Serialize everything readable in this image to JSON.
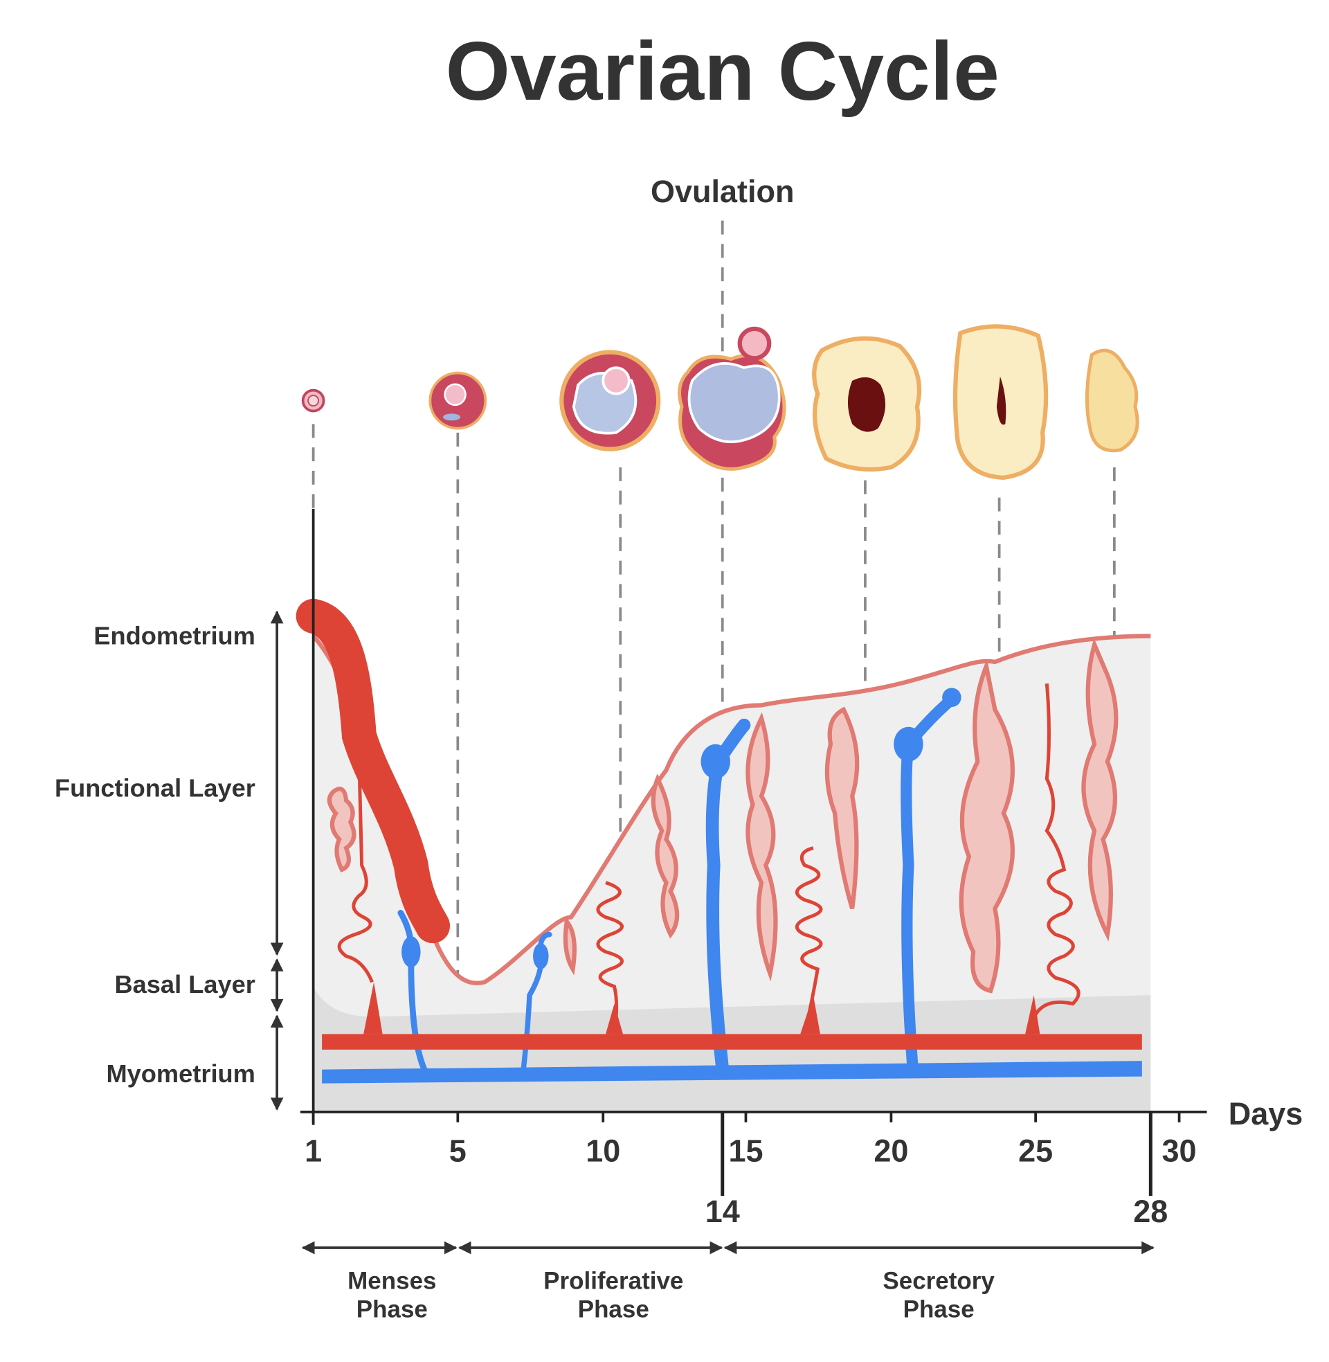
{
  "title": "Ovarian Cycle",
  "ovulation": "Ovulation",
  "layers": [
    "Endometrium",
    "Functional Layer",
    "Basal Layer",
    "Myometrium"
  ],
  "axis": {
    "label": "Days",
    "ticks": [
      1,
      5,
      10,
      15,
      20,
      25,
      30
    ],
    "marker_ticks": [
      14,
      28
    ]
  },
  "phases": [
    {
      "lines": [
        "Menses",
        "Phase"
      ]
    },
    {
      "lines": [
        "Proliferative",
        "Phase"
      ]
    },
    {
      "lines": [
        "Secretory",
        "Phase"
      ]
    }
  ]
}
